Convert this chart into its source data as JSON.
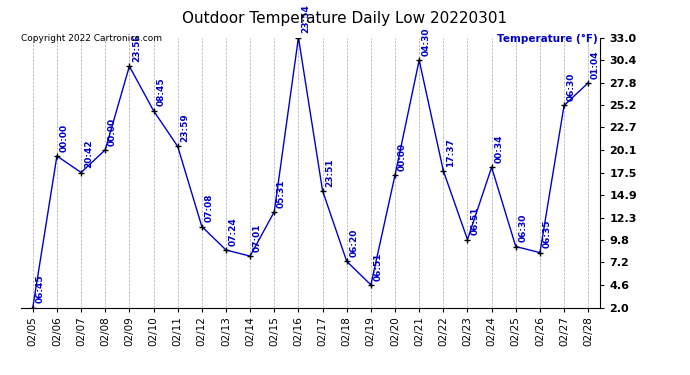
{
  "title": "Outdoor Temperature Daily Low 20220301",
  "copyright": "Copyright 2022 Cartronics.com",
  "ylabel_right": "Temperature (°F)",
  "dates": [
    "02/05",
    "02/06",
    "02/07",
    "02/08",
    "02/09",
    "02/10",
    "02/11",
    "02/12",
    "02/13",
    "02/14",
    "02/15",
    "02/16",
    "02/17",
    "02/18",
    "02/19",
    "02/20",
    "02/21",
    "02/22",
    "02/23",
    "02/24",
    "02/25",
    "02/26",
    "02/27",
    "02/28"
  ],
  "values": [
    2.0,
    19.4,
    17.5,
    20.1,
    29.7,
    24.6,
    20.5,
    11.3,
    8.6,
    7.9,
    13.0,
    33.0,
    15.4,
    7.3,
    4.6,
    17.2,
    30.4,
    17.7,
    9.8,
    18.1,
    9.0,
    8.3,
    25.2,
    27.8
  ],
  "labels": [
    "06:45",
    "00:00",
    "20:42",
    "00:00",
    "23:56",
    "08:45",
    "23:59",
    "07:08",
    "07:24",
    "07:01",
    "05:31",
    "23:54",
    "23:51",
    "06:20",
    "06:51",
    "00:00",
    "04:30",
    "17:37",
    "06:51",
    "00:34",
    "06:30",
    "06:35",
    "06:30",
    "01:04"
  ],
  "line_color": "#0000cc",
  "marker_color": "#000000",
  "background_color": "#ffffff",
  "grid_color": "#aaaaaa",
  "title_color": "#000000",
  "label_color": "#0000cc",
  "copyright_color": "#000000",
  "ylabel_right_color": "#0000cc",
  "ylim": [
    2.0,
    33.0
  ],
  "yticks": [
    2.0,
    4.6,
    7.2,
    9.8,
    12.3,
    14.9,
    17.5,
    20.1,
    22.7,
    25.2,
    27.8,
    30.4,
    33.0
  ],
  "title_fontsize": 11,
  "label_fontsize": 6.5,
  "tick_fontsize": 7.5,
  "copyright_fontsize": 6.5,
  "ytick_fontsize": 8.0
}
